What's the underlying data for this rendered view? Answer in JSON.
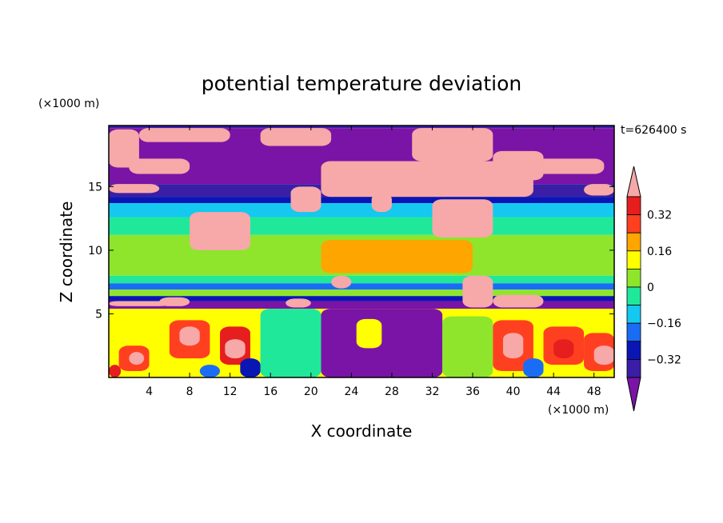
{
  "chart_data": {
    "type": "heatmap",
    "title": "potential temperature deviation",
    "xlabel": "X coordinate",
    "ylabel": "Z coordinate",
    "x_unit": "(×1000 m)",
    "y_unit": "(×1000 m)",
    "time_label": "t=626400 s",
    "xlim": [
      0,
      50
    ],
    "ylim": [
      0,
      19.8
    ],
    "x_ticks": [
      4,
      8,
      12,
      16,
      20,
      24,
      28,
      32,
      36,
      40,
      44,
      48
    ],
    "y_ticks": [
      5,
      10,
      15
    ],
    "colorbar": {
      "levels": [
        -0.4,
        -0.32,
        -0.24,
        -0.16,
        -0.08,
        0,
        0.08,
        0.16,
        0.24,
        0.32,
        0.4
      ],
      "tick_values": [
        -0.32,
        -0.16,
        0,
        0.16,
        0.32
      ],
      "tick_labels": [
        "−0.32",
        "−0.16",
        "0",
        "0.16",
        "0.32"
      ],
      "colors": [
        "#7a14a6",
        "#3a1ea6",
        "#0a16b4",
        "#1b6cf4",
        "#14c8f0",
        "#20e89a",
        "#8ee52c",
        "#ffff00",
        "#ffa500",
        "#ff4020",
        "#e61e1e",
        "#f7a8a8"
      ],
      "extend": "both"
    },
    "bands": [
      {
        "z": [
          19.6,
          19.8
        ],
        "value": -0.36
      },
      {
        "z": [
          15.2,
          19.6
        ],
        "value": -0.45
      },
      {
        "z": [
          14.2,
          15.2
        ],
        "value": -0.36
      },
      {
        "z": [
          13.7,
          14.2
        ],
        "value": -0.28
      },
      {
        "z": [
          12.6,
          13.7
        ],
        "value": -0.12
      },
      {
        "z": [
          11.2,
          12.6
        ],
        "value": -0.04
      },
      {
        "z": [
          8.0,
          11.2
        ],
        "value": 0.04
      },
      {
        "z": [
          7.4,
          8.0
        ],
        "value": -0.04
      },
      {
        "z": [
          6.9,
          7.4
        ],
        "value": -0.2
      },
      {
        "z": [
          6.4,
          6.9
        ],
        "value": 0.0
      },
      {
        "z": [
          6.0,
          6.4
        ],
        "value": -0.28
      },
      {
        "z": [
          5.4,
          6.0
        ],
        "value": -0.45
      },
      {
        "z": [
          0.0,
          5.4
        ],
        "value": 0.12
      }
    ],
    "features": [
      {
        "shape": "rect",
        "x": [
          0,
          3
        ],
        "z": [
          16.5,
          19.5
        ],
        "value": 0.45
      },
      {
        "shape": "rect",
        "x": [
          3,
          12
        ],
        "z": [
          18.5,
          19.6
        ],
        "value": 0.45
      },
      {
        "shape": "rect",
        "x": [
          15,
          22
        ],
        "z": [
          18.2,
          19.6
        ],
        "value": 0.45
      },
      {
        "shape": "rect",
        "x": [
          2,
          8
        ],
        "z": [
          16.0,
          17.2
        ],
        "value": 0.45
      },
      {
        "shape": "rect",
        "x": [
          0,
          5
        ],
        "z": [
          14.5,
          15.2
        ],
        "value": 0.45
      },
      {
        "shape": "rect",
        "x": [
          21,
          42
        ],
        "z": [
          14.2,
          17.0
        ],
        "value": 0.45
      },
      {
        "shape": "rect",
        "x": [
          30,
          38
        ],
        "z": [
          17.0,
          19.6
        ],
        "value": 0.45
      },
      {
        "shape": "rect",
        "x": [
          38,
          43
        ],
        "z": [
          15.5,
          17.8
        ],
        "value": 0.45
      },
      {
        "shape": "rect",
        "x": [
          42,
          49
        ],
        "z": [
          16.0,
          17.2
        ],
        "value": 0.45
      },
      {
        "shape": "rect",
        "x": [
          47,
          50
        ],
        "z": [
          14.3,
          15.2
        ],
        "value": 0.45
      },
      {
        "shape": "rect",
        "x": [
          8,
          14
        ],
        "z": [
          10.0,
          13.0
        ],
        "value": 0.45
      },
      {
        "shape": "rect",
        "x": [
          18,
          21
        ],
        "z": [
          13.0,
          15.0
        ],
        "value": 0.45
      },
      {
        "shape": "rect",
        "x": [
          26,
          28
        ],
        "z": [
          13.0,
          14.5
        ],
        "value": 0.45
      },
      {
        "shape": "rect",
        "x": [
          32,
          38
        ],
        "z": [
          11.0,
          14.0
        ],
        "value": 0.45
      },
      {
        "shape": "rect",
        "x": [
          35,
          38
        ],
        "z": [
          5.5,
          8.0
        ],
        "value": 0.45
      },
      {
        "shape": "rect",
        "x": [
          38,
          43
        ],
        "z": [
          5.5,
          6.5
        ],
        "value": 0.45
      },
      {
        "shape": "rect",
        "x": [
          17.5,
          20
        ],
        "z": [
          5.5,
          6.2
        ],
        "value": 0.45
      },
      {
        "shape": "rect",
        "x": [
          22,
          24
        ],
        "z": [
          7.0,
          8.0
        ],
        "value": 0.45
      },
      {
        "shape": "rect",
        "x": [
          5,
          8
        ],
        "z": [
          5.6,
          6.3
        ],
        "value": 0.45
      },
      {
        "shape": "rect",
        "x": [
          0,
          6
        ],
        "z": [
          5.6,
          6.0
        ],
        "value": 0.45
      },
      {
        "shape": "rect",
        "x": [
          21,
          36
        ],
        "z": [
          8.2,
          10.8
        ],
        "value": 0.2
      },
      {
        "shape": "rect",
        "x": [
          15,
          21
        ],
        "z": [
          0.0,
          5.4
        ],
        "value": -0.06
      },
      {
        "shape": "rect",
        "x": [
          21,
          33
        ],
        "z": [
          0.0,
          5.4
        ],
        "value": -0.45
      },
      {
        "shape": "rect",
        "x": [
          24.5,
          27
        ],
        "z": [
          2.3,
          4.6
        ],
        "value": 0.08
      },
      {
        "shape": "rect",
        "x": [
          33,
          38
        ],
        "z": [
          0.0,
          4.8
        ],
        "value": 0.04
      },
      {
        "shape": "rect",
        "x": [
          1,
          4
        ],
        "z": [
          0.5,
          2.5
        ],
        "value": 0.3
      },
      {
        "shape": "rect",
        "x": [
          2,
          3.5
        ],
        "z": [
          1.0,
          2.0
        ],
        "value": 0.45
      },
      {
        "shape": "rect",
        "x": [
          6,
          10
        ],
        "z": [
          1.5,
          4.5
        ],
        "value": 0.3
      },
      {
        "shape": "rect",
        "x": [
          7,
          9
        ],
        "z": [
          2.5,
          4.0
        ],
        "value": 0.45
      },
      {
        "shape": "rect",
        "x": [
          11,
          14
        ],
        "z": [
          1.0,
          4.0
        ],
        "value": 0.36
      },
      {
        "shape": "rect",
        "x": [
          11.5,
          13.5
        ],
        "z": [
          1.5,
          3.0
        ],
        "value": 0.45
      },
      {
        "shape": "rect",
        "x": [
          38,
          42
        ],
        "z": [
          0.5,
          4.5
        ],
        "value": 0.3
      },
      {
        "shape": "rect",
        "x": [
          39,
          41
        ],
        "z": [
          1.5,
          3.5
        ],
        "value": 0.45
      },
      {
        "shape": "rect",
        "x": [
          43,
          47
        ],
        "z": [
          1.0,
          4.0
        ],
        "value": 0.25
      },
      {
        "shape": "rect",
        "x": [
          44,
          46
        ],
        "z": [
          1.5,
          3.0
        ],
        "value": 0.36
      },
      {
        "shape": "rect",
        "x": [
          47,
          50
        ],
        "z": [
          0.5,
          3.5
        ],
        "value": 0.3
      },
      {
        "shape": "rect",
        "x": [
          48,
          50
        ],
        "z": [
          1.0,
          2.5
        ],
        "value": 0.45
      },
      {
        "shape": "rect",
        "x": [
          0,
          1.2
        ],
        "z": [
          0.0,
          1.0
        ],
        "value": 0.36
      },
      {
        "shape": "rect",
        "x": [
          9,
          11
        ],
        "z": [
          0.0,
          1.0
        ],
        "value": -0.2
      },
      {
        "shape": "rect",
        "x": [
          13,
          15
        ],
        "z": [
          0.0,
          1.5
        ],
        "value": -0.28
      },
      {
        "shape": "rect",
        "x": [
          41,
          43
        ],
        "z": [
          0.0,
          1.5
        ],
        "value": -0.2
      }
    ]
  }
}
